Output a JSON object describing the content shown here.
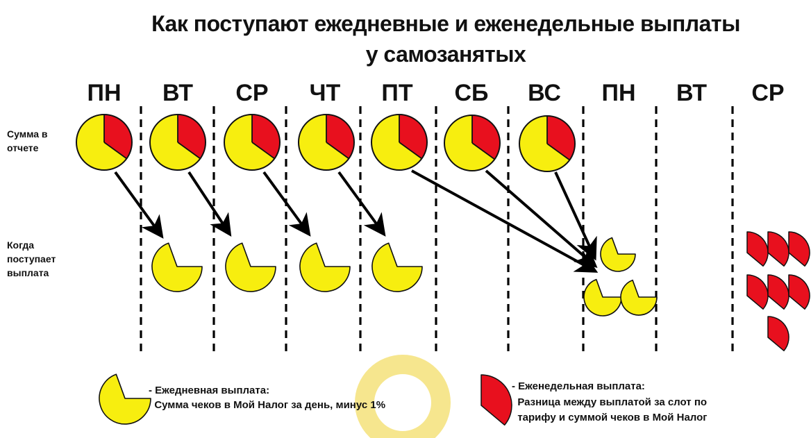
{
  "title": {
    "line1": "Как поступают ежедневные и еженедельные выплаты",
    "line2": "у самозанятых"
  },
  "days": [
    "ПН",
    "ВТ",
    "СР",
    "ЧТ",
    "ПТ",
    "СБ",
    "ВС",
    "ПН",
    "ВТ",
    "СР"
  ],
  "row_labels": {
    "report_sum": "Сумма в\nотчете",
    "payout_time": "Когда\nпоступает\nвыплата"
  },
  "legend": {
    "daily": {
      "line1": "- Ежедневная выплата:",
      "line2": "  Сумма чеков в Мой Налог за день, минус 1%"
    },
    "weekly": {
      "line1": "- Еженедельная выплата:",
      "line2": "  Разница между выплатой за слот по",
      "line3": "  тарифу и суммой чеков в Мой Налог"
    }
  },
  "colors": {
    "daily_yellow": "#f7ee0f",
    "weekly_red": "#e8101e",
    "highlight_circle": "#f5e27a"
  },
  "report_pie": {
    "weekly_fraction": 0.35,
    "daily_fraction": 0.65
  },
  "daily_payout_delay_days": 1,
  "weekend_payouts_day": "ПН",
  "weekly_payouts_day": "СР",
  "weekly_payouts_count": 7
}
